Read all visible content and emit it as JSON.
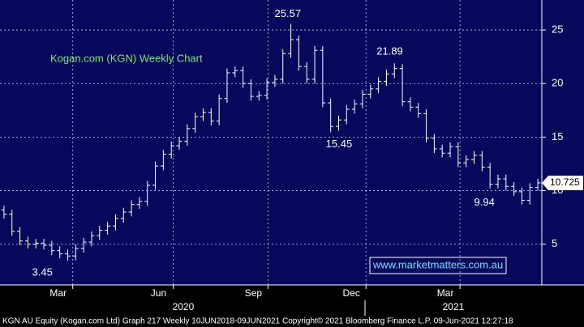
{
  "chart_data": {
    "type": "ohlc",
    "title": "Kogan.com (KGN) Weekly Chart",
    "color": "#ffffff",
    "open": [
      8.2,
      7.8,
      6.2,
      5.3,
      5.0,
      5.1,
      4.9,
      4.4,
      4.1,
      3.9,
      4.6,
      5.2,
      5.8,
      6.3,
      6.7,
      7.4,
      8.0,
      8.7,
      9.0,
      10.5,
      12.3,
      13.4,
      14.2,
      14.6,
      15.8,
      16.9,
      17.3,
      16.5,
      18.6,
      21.0,
      21.2,
      20.0,
      18.8,
      18.9,
      20.1,
      20.4,
      22.8,
      24.1,
      21.6,
      20.4,
      23.1,
      18.2,
      16.0,
      16.6,
      17.6,
      18.1,
      19.0,
      19.5,
      20.2,
      20.9,
      21.4,
      18.3,
      17.8,
      17.2,
      14.9,
      13.9,
      13.5,
      14.1,
      12.6,
      12.9,
      13.3,
      12.2,
      10.6,
      11.1,
      10.4,
      9.9,
      9.1,
      10.3
    ],
    "high": [
      8.6,
      8.2,
      6.6,
      5.7,
      5.5,
      5.5,
      5.3,
      4.8,
      4.5,
      5.0,
      5.6,
      6.2,
      6.7,
      7.1,
      7.8,
      8.4,
      9.1,
      9.4,
      10.9,
      12.7,
      13.8,
      14.6,
      15.0,
      16.2,
      17.3,
      17.7,
      17.7,
      19.0,
      21.4,
      21.6,
      21.6,
      20.4,
      19.3,
      20.5,
      20.8,
      23.2,
      25.57,
      24.5,
      22.0,
      23.5,
      23.5,
      18.6,
      17.0,
      18.0,
      18.5,
      19.4,
      19.9,
      20.6,
      21.3,
      21.89,
      21.8,
      18.7,
      18.2,
      17.6,
      15.3,
      14.3,
      14.5,
      14.5,
      13.3,
      13.7,
      13.7,
      12.6,
      11.5,
      11.5,
      10.8,
      10.3,
      10.7,
      11.1
    ],
    "low": [
      7.4,
      5.8,
      4.9,
      4.6,
      4.6,
      4.5,
      4.0,
      3.7,
      3.45,
      3.5,
      4.2,
      4.8,
      5.4,
      5.9,
      6.3,
      7.0,
      7.6,
      8.3,
      8.6,
      10.1,
      11.9,
      13.0,
      13.8,
      14.2,
      15.4,
      16.5,
      16.1,
      16.1,
      18.2,
      20.6,
      19.6,
      18.4,
      18.4,
      18.5,
      19.7,
      20.0,
      22.4,
      21.2,
      20.0,
      20.0,
      17.8,
      15.45,
      15.6,
      16.2,
      17.2,
      17.7,
      18.6,
      19.1,
      19.8,
      20.5,
      17.9,
      17.4,
      16.8,
      14.5,
      13.5,
      13.1,
      13.1,
      12.2,
      12.2,
      12.5,
      11.8,
      10.2,
      10.2,
      10.0,
      9.5,
      8.7,
      8.7,
      10.0
    ],
    "close": [
      7.8,
      6.2,
      5.3,
      5.0,
      5.1,
      4.9,
      4.4,
      4.1,
      3.9,
      4.6,
      5.2,
      5.8,
      6.3,
      6.7,
      7.4,
      8.0,
      8.7,
      9.0,
      10.5,
      12.3,
      13.4,
      14.2,
      14.6,
      15.8,
      16.9,
      17.3,
      16.5,
      18.6,
      21.0,
      21.2,
      20.0,
      18.8,
      18.9,
      20.1,
      20.4,
      22.8,
      24.1,
      21.6,
      20.4,
      23.1,
      18.2,
      16.0,
      16.6,
      17.6,
      18.1,
      19.0,
      19.5,
      20.2,
      20.9,
      21.4,
      18.3,
      17.8,
      17.2,
      14.9,
      13.9,
      13.5,
      14.1,
      12.6,
      12.9,
      13.3,
      12.2,
      10.6,
      11.1,
      10.4,
      9.9,
      9.1,
      10.3,
      10.725
    ],
    "annotations": [
      9.94
    ],
    "xlim": [
      -0.5,
      67.5
    ],
    "xticks": [
      {
        "value": 6.8,
        "label": "Mar"
      },
      {
        "value": 19.4,
        "label": "Jun"
      },
      {
        "value": 31.3,
        "label": "Sep"
      },
      {
        "value": 43.6,
        "label": "Dec"
      },
      {
        "value": 55.4,
        "label": "Mar"
      }
    ],
    "year_ticks": [
      {
        "value": 22.5,
        "label": "2020"
      },
      {
        "value": 56.4,
        "label": "2021"
      }
    ],
    "ylim": [
      1.2,
      27.8
    ],
    "yticks": [
      5,
      10,
      15,
      20,
      25
    ],
    "grid": true,
    "watermark": "www.marketmatters.com.au",
    "footer": "KGN AU Equity (Kogan.com Ltd) Graph 217  Weekly 10JUN2018-09JUN2021 Copyright© 2021 Bloomberg Finance L.P. 09-Jun-2021 12:27:18"
  }
}
